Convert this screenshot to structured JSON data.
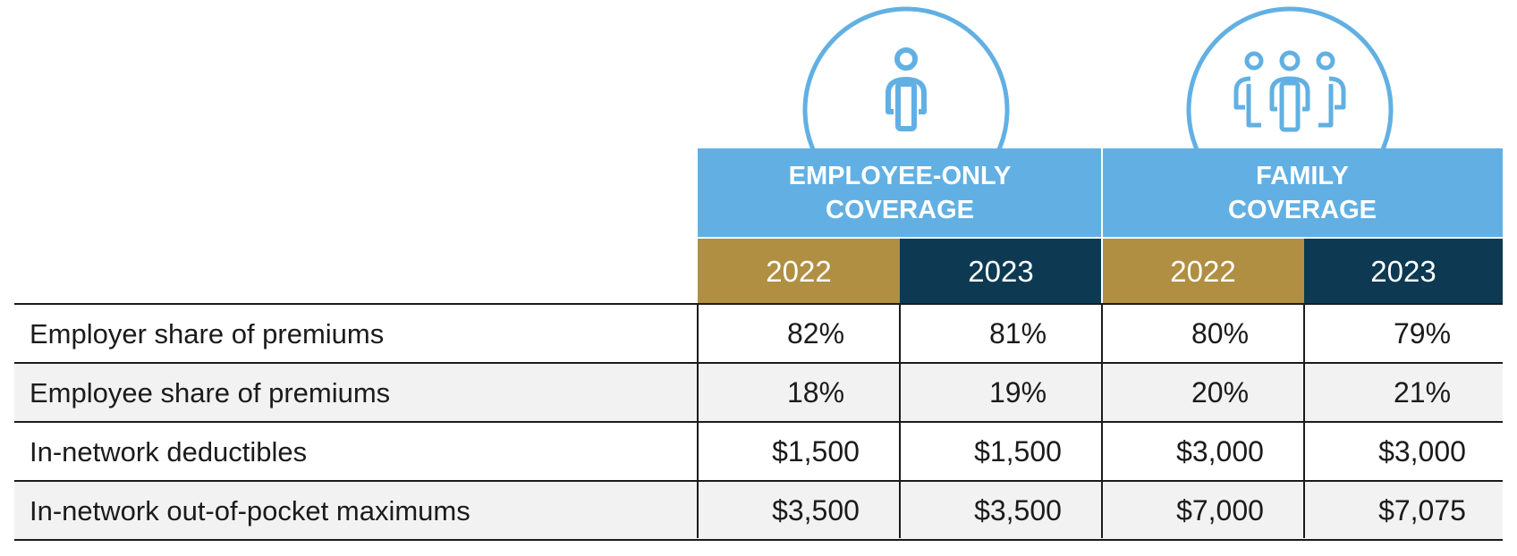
{
  "colors": {
    "header_blue": "#62b0e3",
    "year_2022": "#b08f42",
    "year_2023": "#0d3a52",
    "alt_row": "#f2f2f3"
  },
  "icons": {
    "employee_only": "single-person-icon",
    "family": "family-icon"
  },
  "groups": [
    {
      "line1": "EMPLOYEE-ONLY",
      "line2": "COVERAGE",
      "years": [
        "2022",
        "2023"
      ]
    },
    {
      "line1": "FAMILY",
      "line2": "COVERAGE",
      "years": [
        "2022",
        "2023"
      ]
    }
  ],
  "rows": [
    {
      "label": "Employer share of premiums",
      "values": [
        "82%",
        "81%",
        "80%",
        "79%"
      ]
    },
    {
      "label": "Employee share of premiums",
      "values": [
        "18%",
        "19%",
        "20%",
        "21%"
      ]
    },
    {
      "label": "In-network deductibles",
      "values": [
        "$1,500",
        "$1,500",
        "$3,000",
        "$3,000"
      ]
    },
    {
      "label": "In-network out-of-pocket maximums",
      "values": [
        "$3,500",
        "$3,500",
        "$7,000",
        "$7,075"
      ]
    }
  ]
}
